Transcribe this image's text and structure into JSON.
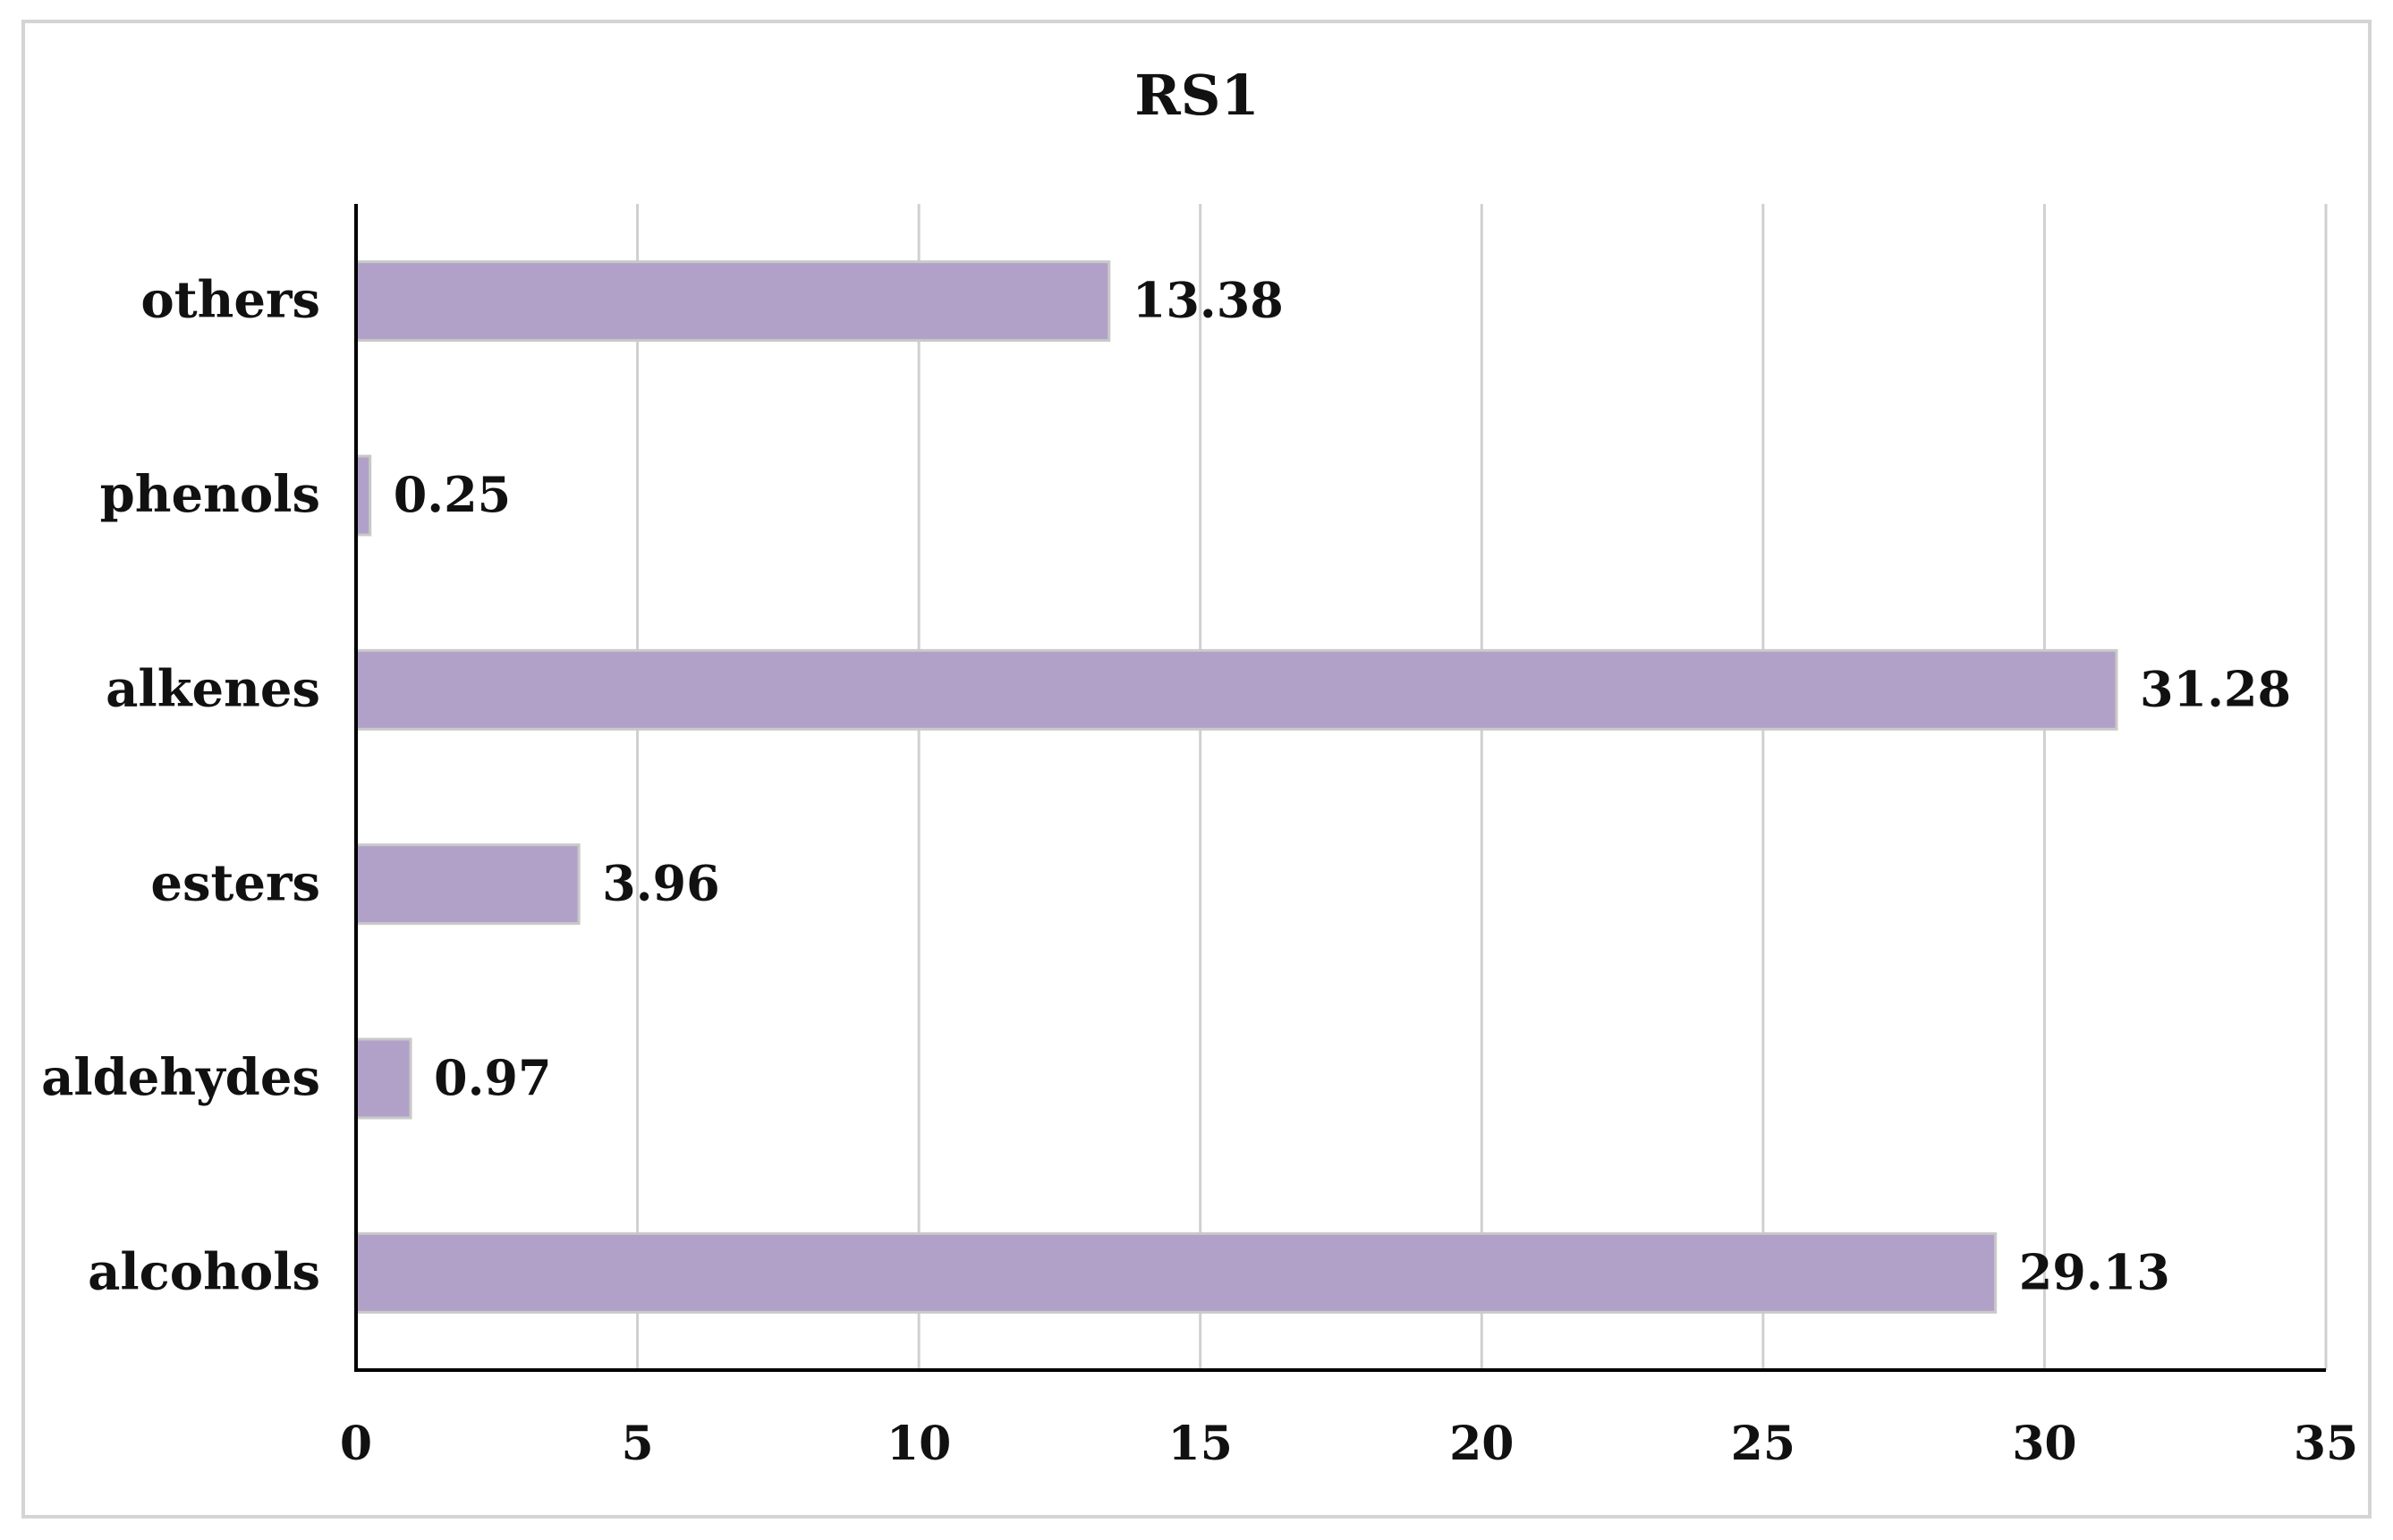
{
  "chart_data": {
    "type": "bar",
    "orientation": "horizontal",
    "title": "RS1",
    "xlabel": "",
    "ylabel": "",
    "categories": [
      "alcohols",
      "aldehydes",
      "esters",
      "alkenes",
      "phenols",
      "others"
    ],
    "values": [
      29.13,
      0.97,
      3.96,
      31.28,
      0.25,
      13.38
    ],
    "value_labels": [
      "29.13",
      "0.97",
      "3.96",
      "31.28",
      "0.25",
      "13.38"
    ],
    "xlim": [
      0,
      35
    ],
    "x_ticks": [
      0,
      5,
      10,
      15,
      20,
      25,
      30,
      35
    ],
    "x_tick_labels": [
      "0",
      "5",
      "10",
      "15",
      "20",
      "25",
      "30",
      "35"
    ],
    "grid": "vertical",
    "legend": "none",
    "colors": {
      "bar": "#b1a1c8",
      "bar_border": "#c9c9c9",
      "grid": "#d0d0d0",
      "axis": "#000000",
      "frame": "#d4d4d4"
    }
  }
}
